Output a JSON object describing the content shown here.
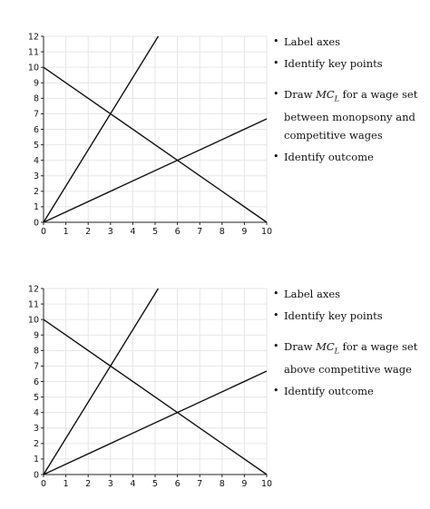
{
  "panels": [
    {
      "id": "top",
      "instructions": [
        {
          "text": "Label axes"
        },
        {
          "text": "Identify key points"
        },
        {
          "pre": "Draw ",
          "math": "MC",
          "sub": "L",
          "post": " for a wage set between monopsony and competitive wages"
        },
        {
          "text": "Identify outcome"
        }
      ]
    },
    {
      "id": "bottom",
      "instructions": [
        {
          "text": "Label axes"
        },
        {
          "text": "Identify key points"
        },
        {
          "pre": "Draw ",
          "math": "MC",
          "sub": "L",
          "post": " for a wage set above competitive wage"
        },
        {
          "text": "Identify outcome"
        }
      ]
    }
  ],
  "bullet": "•",
  "chart_data": [
    {
      "type": "line",
      "xlim": [
        0,
        10
      ],
      "ylim": [
        0,
        12
      ],
      "xticks": [
        0,
        1,
        2,
        3,
        4,
        5,
        6,
        7,
        8,
        9,
        10
      ],
      "yticks": [
        0,
        1,
        2,
        3,
        4,
        5,
        6,
        7,
        8,
        9,
        10,
        11,
        12
      ],
      "grid": true,
      "title": "",
      "xlabel": "",
      "ylabel": "",
      "series": [
        {
          "x": [
            0,
            5.14
          ],
          "y": [
            0,
            12
          ]
        },
        {
          "x": [
            0,
            10
          ],
          "y": [
            10,
            0
          ]
        },
        {
          "x": [
            0,
            10
          ],
          "y": [
            0,
            6.67
          ]
        }
      ]
    },
    {
      "type": "line",
      "xlim": [
        0,
        10
      ],
      "ylim": [
        0,
        12
      ],
      "xticks": [
        0,
        1,
        2,
        3,
        4,
        5,
        6,
        7,
        8,
        9,
        10
      ],
      "yticks": [
        0,
        1,
        2,
        3,
        4,
        5,
        6,
        7,
        8,
        9,
        10,
        11,
        12
      ],
      "grid": true,
      "title": "",
      "xlabel": "",
      "ylabel": "",
      "series": [
        {
          "x": [
            0,
            5.14
          ],
          "y": [
            0,
            12
          ]
        },
        {
          "x": [
            0,
            10
          ],
          "y": [
            10,
            0
          ]
        },
        {
          "x": [
            0,
            10
          ],
          "y": [
            0,
            6.67
          ]
        }
      ]
    }
  ]
}
